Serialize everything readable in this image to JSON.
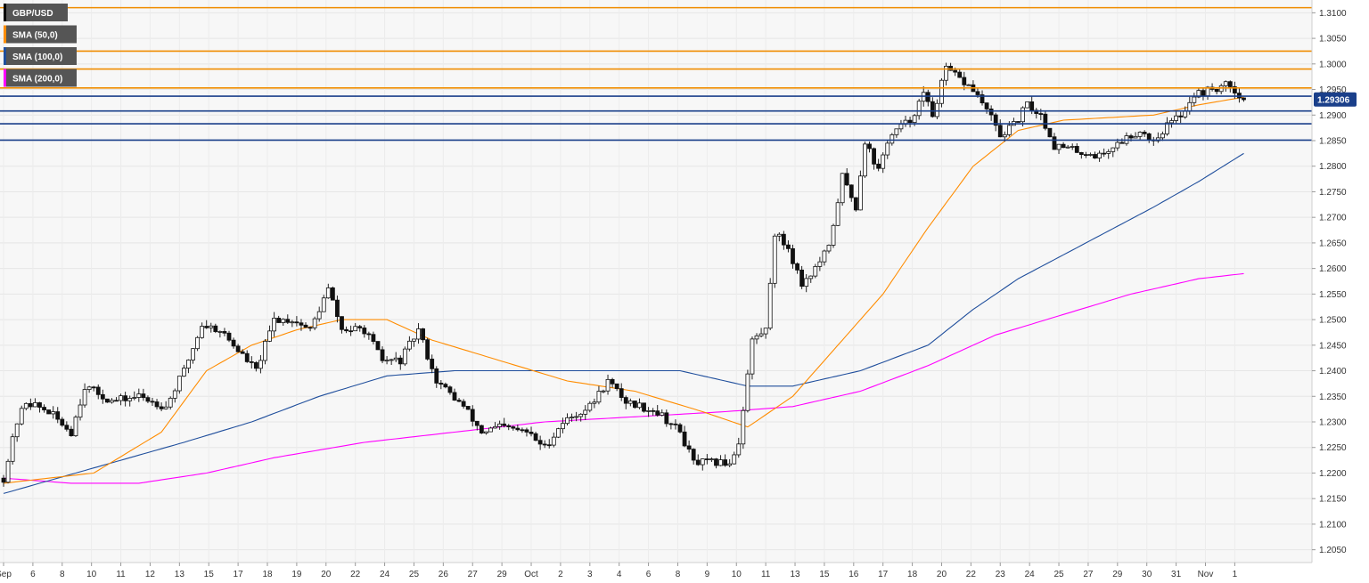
{
  "chart_data": {
    "type": "candlestick",
    "symbol": "GBP/USD",
    "legend": [
      {
        "label": "GBP/USD",
        "color": "#000000"
      },
      {
        "label": "SMA (50,0)",
        "color": "#ff8c00"
      },
      {
        "label": "SMA (100,0)",
        "color": "#1f4e9c"
      },
      {
        "label": "SMA (200,0)",
        "color": "#ff00ff"
      }
    ],
    "last_price": "1.29306",
    "ylim": [
      1.2025,
      1.3125
    ],
    "y_ticks": [
      "1.3100",
      "1.3050",
      "1.3000",
      "1.2950",
      "1.2900",
      "1.2850",
      "1.2800",
      "1.2750",
      "1.2700",
      "1.2650",
      "1.2600",
      "1.2550",
      "1.2500",
      "1.2450",
      "1.2400",
      "1.2350",
      "1.2300",
      "1.2250",
      "1.2200",
      "1.2150",
      "1.2100",
      "1.2050"
    ],
    "x_ticks": [
      {
        "label": "Sep",
        "i": 0
      },
      {
        "label": "6",
        "i": 6.5
      },
      {
        "label": "8",
        "i": 13
      },
      {
        "label": "10",
        "i": 19.5
      },
      {
        "label": "11",
        "i": 26
      },
      {
        "label": "12",
        "i": 32.5
      },
      {
        "label": "13",
        "i": 39
      },
      {
        "label": "15",
        "i": 45.5
      },
      {
        "label": "17",
        "i": 52
      },
      {
        "label": "18",
        "i": 58.5
      },
      {
        "label": "19",
        "i": 65
      },
      {
        "label": "20",
        "i": 71.5
      },
      {
        "label": "22",
        "i": 78
      },
      {
        "label": "24",
        "i": 84.5
      },
      {
        "label": "25",
        "i": 91
      },
      {
        "label": "26",
        "i": 97.5
      },
      {
        "label": "27",
        "i": 104
      },
      {
        "label": "29",
        "i": 110.5
      },
      {
        "label": "Oct",
        "i": 117
      },
      {
        "label": "2",
        "i": 123.5
      },
      {
        "label": "3",
        "i": 130
      },
      {
        "label": "4",
        "i": 136.5
      },
      {
        "label": "6",
        "i": 143
      },
      {
        "label": "8",
        "i": 149.5
      },
      {
        "label": "9",
        "i": 156
      },
      {
        "label": "10",
        "i": 162.5
      },
      {
        "label": "11",
        "i": 169
      },
      {
        "label": "13",
        "i": 175.5
      },
      {
        "label": "15",
        "i": 182
      },
      {
        "label": "16",
        "i": 188.5
      },
      {
        "label": "17",
        "i": 195
      },
      {
        "label": "18",
        "i": 201.5
      },
      {
        "label": "20",
        "i": 208
      },
      {
        "label": "22",
        "i": 214.5
      },
      {
        "label": "23",
        "i": 221
      },
      {
        "label": "24",
        "i": 227.5
      },
      {
        "label": "25",
        "i": 234
      },
      {
        "label": "27",
        "i": 240.5
      },
      {
        "label": "29",
        "i": 247
      },
      {
        "label": "30",
        "i": 253.5
      },
      {
        "label": "31",
        "i": 260
      },
      {
        "label": "Nov",
        "i": 266.5
      },
      {
        "label": "1",
        "i": 273
      }
    ],
    "resistance_levels": [
      1.311,
      1.3025,
      1.299,
      1.2953
    ],
    "support_levels": [
      1.2937,
      1.2908,
      1.2883,
      1.2851
    ],
    "close_anchors": [
      [
        0,
        1.219
      ],
      [
        3,
        1.23
      ],
      [
        5,
        1.234
      ],
      [
        10,
        1.232
      ],
      [
        15,
        1.228
      ],
      [
        18,
        1.237
      ],
      [
        24,
        1.234
      ],
      [
        30,
        1.235
      ],
      [
        36,
        1.233
      ],
      [
        40,
        1.24
      ],
      [
        44,
        1.249
      ],
      [
        48,
        1.248
      ],
      [
        52,
        1.244
      ],
      [
        56,
        1.24
      ],
      [
        60,
        1.25
      ],
      [
        64,
        1.25
      ],
      [
        68,
        1.248
      ],
      [
        72,
        1.256
      ],
      [
        75,
        1.248
      ],
      [
        80,
        1.248
      ],
      [
        84,
        1.242
      ],
      [
        88,
        1.242
      ],
      [
        92,
        1.248
      ],
      [
        96,
        1.238
      ],
      [
        102,
        1.233
      ],
      [
        106,
        1.228
      ],
      [
        110,
        1.229
      ],
      [
        116,
        1.228
      ],
      [
        120,
        1.225
      ],
      [
        124,
        1.23
      ],
      [
        130,
        1.233
      ],
      [
        134,
        1.238
      ],
      [
        138,
        1.234
      ],
      [
        145,
        1.232
      ],
      [
        150,
        1.228
      ],
      [
        153,
        1.222
      ],
      [
        158,
        1.222
      ],
      [
        161,
        1.222
      ],
      [
        163,
        1.226
      ],
      [
        166,
        1.246
      ],
      [
        169,
        1.248
      ],
      [
        171,
        1.267
      ],
      [
        174,
        1.264
      ],
      [
        177,
        1.257
      ],
      [
        180,
        1.26
      ],
      [
        183,
        1.264
      ],
      [
        186,
        1.278
      ],
      [
        189,
        1.272
      ],
      [
        191,
        1.285
      ],
      [
        194,
        1.279
      ],
      [
        196,
        1.285
      ],
      [
        198,
        1.287
      ],
      [
        201,
        1.289
      ],
      [
        204,
        1.294
      ],
      [
        206,
        1.29
      ],
      [
        209,
        1.299
      ],
      [
        212,
        1.297
      ],
      [
        215,
        1.295
      ],
      [
        218,
        1.291
      ],
      [
        221,
        1.286
      ],
      [
        224,
        1.288
      ],
      [
        227,
        1.292
      ],
      [
        230,
        1.29
      ],
      [
        233,
        1.284
      ],
      [
        238,
        1.283
      ],
      [
        243,
        1.282
      ],
      [
        248,
        1.285
      ],
      [
        252,
        1.287
      ],
      [
        255,
        1.285
      ],
      [
        258,
        1.288
      ],
      [
        261,
        1.29
      ],
      [
        264,
        1.294
      ],
      [
        268,
        1.295
      ],
      [
        272,
        1.296
      ],
      [
        275,
        1.293
      ]
    ],
    "sma50": [
      [
        0,
        1.218
      ],
      [
        20,
        1.22
      ],
      [
        35,
        1.228
      ],
      [
        45,
        1.24
      ],
      [
        55,
        1.245
      ],
      [
        65,
        1.248
      ],
      [
        75,
        1.25
      ],
      [
        85,
        1.25
      ],
      [
        95,
        1.246
      ],
      [
        110,
        1.242
      ],
      [
        125,
        1.238
      ],
      [
        140,
        1.236
      ],
      [
        155,
        1.232
      ],
      [
        165,
        1.229
      ],
      [
        175,
        1.235
      ],
      [
        185,
        1.245
      ],
      [
        195,
        1.255
      ],
      [
        205,
        1.268
      ],
      [
        215,
        1.28
      ],
      [
        225,
        1.287
      ],
      [
        235,
        1.289
      ],
      [
        245,
        1.2895
      ],
      [
        255,
        1.29
      ],
      [
        265,
        1.292
      ],
      [
        275,
        1.2935
      ]
    ],
    "sma100": [
      [
        0,
        1.216
      ],
      [
        20,
        1.221
      ],
      [
        40,
        1.226
      ],
      [
        55,
        1.23
      ],
      [
        70,
        1.235
      ],
      [
        85,
        1.239
      ],
      [
        100,
        1.24
      ],
      [
        115,
        1.24
      ],
      [
        135,
        1.24
      ],
      [
        150,
        1.24
      ],
      [
        165,
        1.237
      ],
      [
        175,
        1.237
      ],
      [
        190,
        1.24
      ],
      [
        205,
        1.245
      ],
      [
        215,
        1.252
      ],
      [
        225,
        1.258
      ],
      [
        240,
        1.265
      ],
      [
        255,
        1.272
      ],
      [
        265,
        1.277
      ],
      [
        275,
        1.2825
      ]
    ],
    "sma200": [
      [
        0,
        1.219
      ],
      [
        15,
        1.218
      ],
      [
        30,
        1.218
      ],
      [
        45,
        1.22
      ],
      [
        60,
        1.223
      ],
      [
        80,
        1.226
      ],
      [
        100,
        1.228
      ],
      [
        120,
        1.23
      ],
      [
        140,
        1.231
      ],
      [
        160,
        1.232
      ],
      [
        175,
        1.233
      ],
      [
        190,
        1.236
      ],
      [
        205,
        1.241
      ],
      [
        220,
        1.247
      ],
      [
        235,
        1.251
      ],
      [
        250,
        1.255
      ],
      [
        265,
        1.258
      ],
      [
        275,
        1.259
      ]
    ]
  }
}
